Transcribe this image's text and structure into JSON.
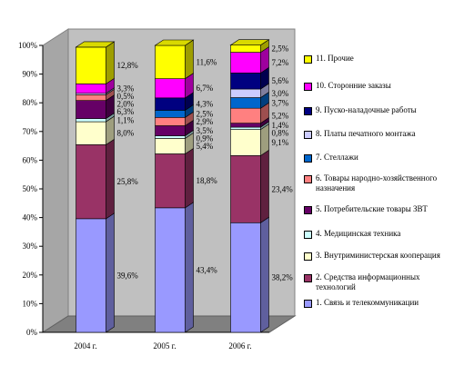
{
  "chart_data": {
    "type": "bar",
    "stacked": true,
    "percent_stacked": true,
    "three_d": true,
    "categories": [
      "2004 г.",
      "2005 г.",
      "2006 г."
    ],
    "y_ticks": [
      "0%",
      "10%",
      "20%",
      "30%",
      "40%",
      "50%",
      "60%",
      "70%",
      "80%",
      "90%",
      "100%"
    ],
    "ylim": [
      0,
      100
    ],
    "grid": false,
    "legend_position": "right",
    "series": [
      {
        "name": "1. Связь и телекоммуникации",
        "color": "#9999ff",
        "values": [
          39.6,
          43.4,
          38.2
        ],
        "labels": [
          "39,6%",
          "43,4%",
          "38,2%"
        ]
      },
      {
        "name": "2. Средства информационных технологий",
        "color": "#993366",
        "values": [
          25.8,
          18.8,
          23.4
        ],
        "labels": [
          "25,8%",
          "18,8%",
          "23,4%"
        ]
      },
      {
        "name": "3. Внутриминистерская кооперация",
        "color": "#ffffcc",
        "values": [
          8.0,
          5.4,
          9.1
        ],
        "labels": [
          "8,0%",
          "5,4%",
          "9,1%"
        ]
      },
      {
        "name": "4. Медицинская техника",
        "color": "#ccffff",
        "values": [
          1.1,
          0.9,
          0.8
        ],
        "labels": [
          "1,1%",
          "0,9%",
          "0,8%"
        ]
      },
      {
        "name": "5. Потребительские товары ЗВТ",
        "color": "#660066",
        "values": [
          6.3,
          3.5,
          1.4
        ],
        "labels": [
          "6,3%",
          "3,5%",
          "1,4%"
        ]
      },
      {
        "name": "6. Товары народно-хозяйственного назначения",
        "color": "#ff8080",
        "values": [
          2.0,
          2.9,
          5.2
        ],
        "labels": [
          "2,0%",
          "2,9%",
          "5,2%"
        ]
      },
      {
        "name": "7. Стеллажи",
        "color": "#0066cc",
        "values": [
          0.0,
          2.5,
          3.7
        ],
        "labels": [
          "",
          "2,5%",
          "3,7%"
        ]
      },
      {
        "name": "8. Платы печатного монтажа",
        "color": "#ccccff",
        "values": [
          0.5,
          0.0,
          3.0
        ],
        "labels": [
          "0,5%",
          "",
          "3,0%"
        ]
      },
      {
        "name": "9. Пуско-наладочные работы",
        "color": "#000080",
        "values": [
          0.0,
          4.3,
          5.6
        ],
        "labels": [
          "",
          "4,3%",
          "5,6%"
        ]
      },
      {
        "name": "10. Сторонние заказы",
        "color": "#ff00ff",
        "values": [
          3.3,
          6.7,
          7.2
        ],
        "labels": [
          "3,3%",
          "6,7%",
          "7,2%"
        ]
      },
      {
        "name": "11. Прочие",
        "color": "#ffff00",
        "values": [
          12.8,
          11.6,
          2.5
        ],
        "labels": [
          "12,8%",
          "11,6%",
          "2,5%"
        ]
      }
    ]
  }
}
